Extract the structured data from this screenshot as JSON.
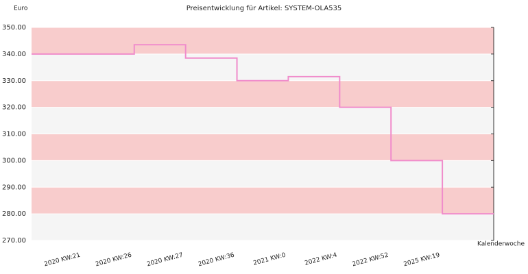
{
  "chart_data": {
    "type": "step-line",
    "title": "Preisentwicklung für Artikel: SYSTEM-OLA535",
    "y_label": "Euro",
    "x_label": "Kalenderwoche",
    "categories": [
      "2020 KW:21",
      "2020 KW:26",
      "2020 KW:27",
      "2020 KW:36",
      "2021 KW:0",
      "2022 KW:4",
      "2022 KW:52",
      "2025 KW:19"
    ],
    "series": [
      {
        "color": "#f08ccb",
        "values": [
          340,
          343.5,
          338.5,
          330,
          331.5,
          320,
          300,
          280
        ]
      }
    ],
    "ylim": [
      270,
      350
    ],
    "yticks": [
      {
        "value": 270,
        "label": "270.00"
      },
      {
        "value": 280,
        "label": "280.00"
      },
      {
        "value": 290,
        "label": "290.00"
      },
      {
        "value": 300,
        "label": "300.00"
      },
      {
        "value": 310,
        "label": "310.00"
      },
      {
        "value": 320,
        "label": "320.00"
      },
      {
        "value": 330,
        "label": "330.00"
      },
      {
        "value": 340,
        "label": "340.00"
      },
      {
        "value": 350,
        "label": "350.00"
      }
    ],
    "band_colors": [
      "#f8cccc",
      "#f5f5f5"
    ]
  }
}
